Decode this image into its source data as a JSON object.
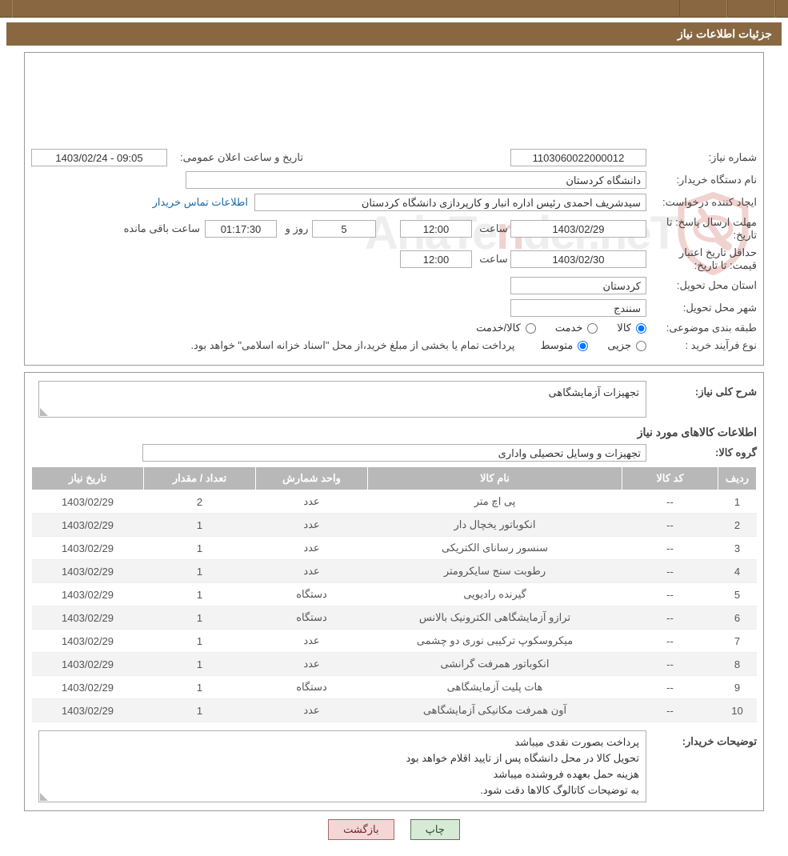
{
  "header": {
    "title": "جزئیات اطلاعات نیاز"
  },
  "labels": {
    "need_no": "شماره نیاز:",
    "announce_dt": "تاریخ و ساعت اعلان عمومی:",
    "buyer_org": "نام دستگاه خریدار:",
    "requester": "ایجاد کننده درخواست:",
    "contact_link": "اطلاعات تماس خریدار",
    "resp_deadline": "مهلت ارسال پاسخ: تا تاریخ:",
    "time_word": "ساعت",
    "days_and": "روز و",
    "time_remaining": "ساعت باقی مانده",
    "price_validity": "حداقل تاریخ اعتبار قیمت: تا تاریخ:",
    "delivery_province": "استان محل تحویل:",
    "delivery_city": "شهر محل تحویل:",
    "subject_class": "طبقه بندی موضوعی:",
    "purchase_type": "نوع فرآیند خرید :",
    "radio_goods": "کالا",
    "radio_service": "خدمت",
    "radio_goods_service": "کالا/خدمت",
    "radio_partial": "جزیی",
    "radio_medium": "متوسط",
    "purchase_note": "پرداخت تمام یا بخشی از مبلغ خرید،از محل \"اسناد خزانه اسلامی\" خواهد بود.",
    "general_desc": "شرح کلی نیاز:",
    "items_section": "اطلاعات کالاهای مورد نیاز",
    "goods_group": "گروه کالا:",
    "buyer_notes": "توضیحات خریدار:"
  },
  "values": {
    "need_no": "1103060022000012",
    "announce_dt": "1403/02/24 - 09:05",
    "buyer_org": "دانشگاه کردستان",
    "requester": "سیدشریف احمدی رئیس اداره انبار و کارپردازی دانشگاه کردستان",
    "resp_date": "1403/02/29",
    "resp_time": "12:00",
    "days_left": "5",
    "countdown": "01:17:30",
    "price_date": "1403/02/30",
    "price_time": "12:00",
    "province": "کردستان",
    "city": "سنندج",
    "general_desc": "تجهیزات آزمایشگاهی",
    "goods_group": "تجهیزات و وسایل تحصیلی واداری"
  },
  "buyer_notes": {
    "l1": "پرداخت بصورت نقدی میباشد",
    "l2": "تحویل کالا در محل دانشگاه پس از تایید اقلام خواهد بود",
    "l3": "هزینه حمل بعهده فروشنده میباشد",
    "l4": "به توضیحات کاتالوگ کالاها دقت شود."
  },
  "table": {
    "headers": {
      "idx": "ردیف",
      "code": "کد کالا",
      "name": "نام کالا",
      "unit": "واحد شمارش",
      "qty": "تعداد / مقدار",
      "date": "تاریخ نیاز"
    },
    "rows": [
      {
        "idx": "1",
        "code": "--",
        "name": "پی اچ متر",
        "unit": "عدد",
        "qty": "2",
        "date": "1403/02/29"
      },
      {
        "idx": "2",
        "code": "--",
        "name": "انکوباتور یخچال دار",
        "unit": "عدد",
        "qty": "1",
        "date": "1403/02/29"
      },
      {
        "idx": "3",
        "code": "--",
        "name": "سنسور رسانای الکتریکی",
        "unit": "عدد",
        "qty": "1",
        "date": "1403/02/29"
      },
      {
        "idx": "4",
        "code": "--",
        "name": "رطوبت سنج سایکرومتر",
        "unit": "عدد",
        "qty": "1",
        "date": "1403/02/29"
      },
      {
        "idx": "5",
        "code": "--",
        "name": "گیرنده رادیویی",
        "unit": "دستگاه",
        "qty": "1",
        "date": "1403/02/29"
      },
      {
        "idx": "6",
        "code": "--",
        "name": "ترازو آزمایشگاهی الکترونیک بالانس",
        "unit": "دستگاه",
        "qty": "1",
        "date": "1403/02/29"
      },
      {
        "idx": "7",
        "code": "--",
        "name": "میکروسکوپ ترکیبی نوری دو چشمی",
        "unit": "عدد",
        "qty": "1",
        "date": "1403/02/29"
      },
      {
        "idx": "8",
        "code": "--",
        "name": "انکوباتور همرفت گرانشی",
        "unit": "عدد",
        "qty": "1",
        "date": "1403/02/29"
      },
      {
        "idx": "9",
        "code": "--",
        "name": "هات پلیت آزمایشگاهی",
        "unit": "دستگاه",
        "qty": "1",
        "date": "1403/02/29"
      },
      {
        "idx": "10",
        "code": "--",
        "name": "آون همرفت مکانیکی آزمایشگاهی",
        "unit": "عدد",
        "qty": "1",
        "date": "1403/02/29"
      }
    ]
  },
  "buttons": {
    "print": "چاپ",
    "back": "بازگشت"
  },
  "watermark": {
    "text": "AriaTender"
  },
  "colors": {
    "header_bg": "#896841",
    "th_bg": "#b8b8b8",
    "link": "#1a6aa8",
    "btn_print_bg": "#d6ead6",
    "btn_back_bg": "#f4d6d6"
  }
}
